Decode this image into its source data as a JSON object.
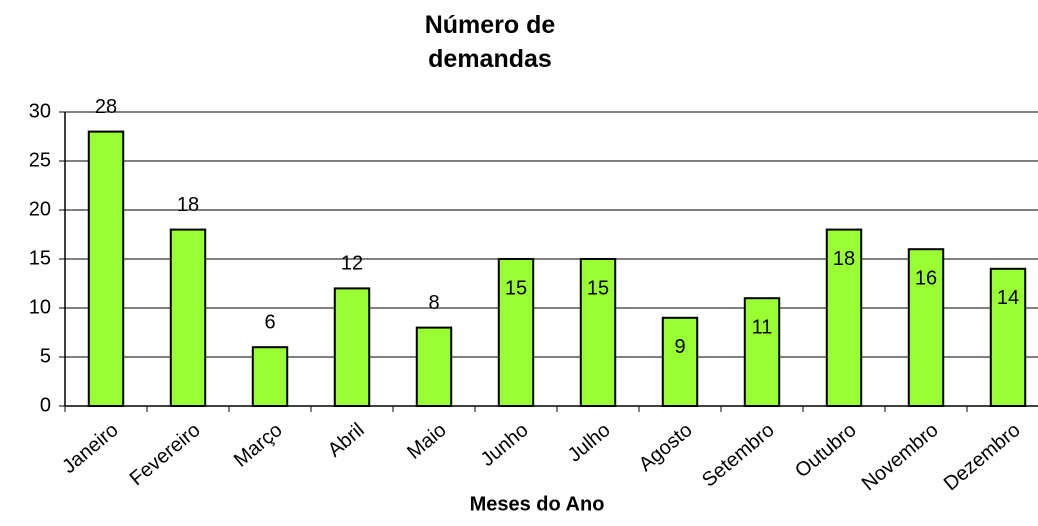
{
  "chart_data": {
    "type": "bar",
    "title": "Número de demandas",
    "x_label": "Meses do Ano",
    "categories": [
      "Janeiro",
      "Fevereiro",
      "Março",
      "Abril",
      "Maio",
      "Junho",
      "Julho",
      "Agosto",
      "Setembro",
      "Outubro",
      "Novembro",
      "Dezembro"
    ],
    "values": [
      28,
      18,
      6,
      12,
      8,
      15,
      15,
      9,
      11,
      18,
      16,
      14
    ],
    "color": "#99ff33",
    "ylim": [
      0,
      30
    ],
    "yticks": [
      0,
      5,
      10,
      15,
      20,
      25,
      30
    ],
    "grid": true
  }
}
